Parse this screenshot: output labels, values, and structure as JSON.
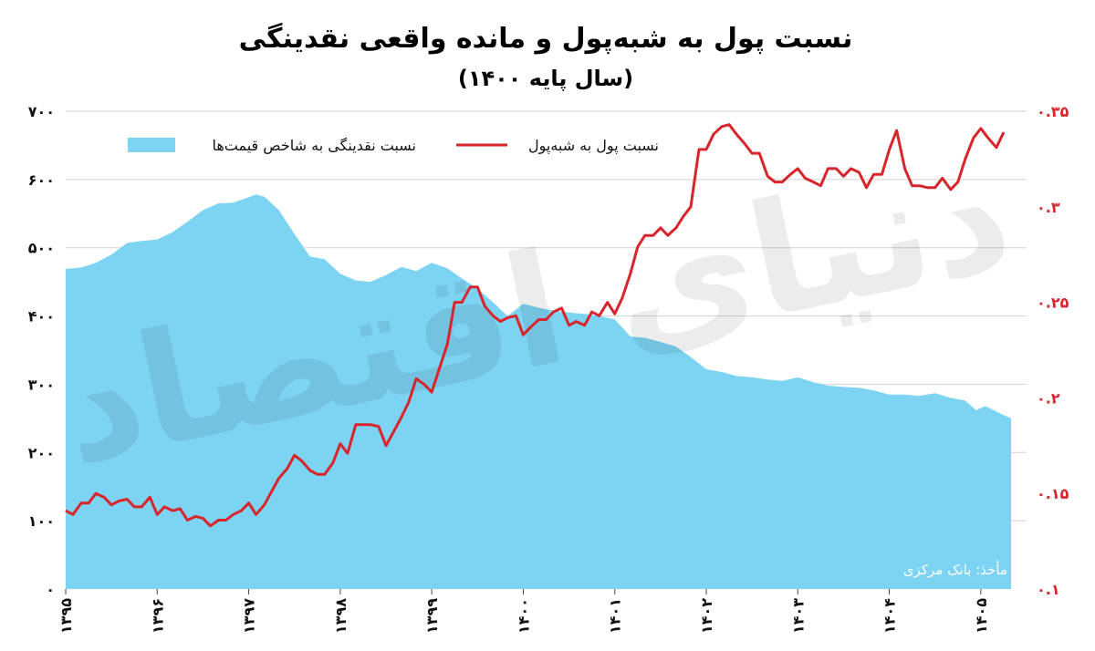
{
  "chart_data": {
    "type": "area+line",
    "title": "نسبت پول به شبه‌پول و مانده واقعی نقدینگی",
    "subtitle": "(سال پایه ۱۴۰۰)",
    "source": "مأخذ: بانک مرکزی",
    "grid": true,
    "legend_placement": "top",
    "x_ticks": [
      "۱۳۹۵",
      "۱۳۹۶",
      "۱۳۹۷",
      "۱۳۹۸",
      "۱۳۹۹",
      "۱۴۰۰",
      "۱۴۰۱",
      "۱۴۰۲",
      "۱۴۰۳",
      "۱۴۰۴",
      "۱۴۰۵"
    ],
    "x_range": [
      1395,
      1405.5
    ],
    "y_left": {
      "ticks": [
        0,
        100,
        200,
        300,
        400,
        500,
        600,
        700
      ],
      "tick_labels": [
        "۰",
        "۱۰۰",
        "۲۰۰",
        "۳۰۰",
        "۴۰۰",
        "۵۰۰",
        "۶۰۰",
        "۷۰۰"
      ],
      "range": [
        0,
        700
      ]
    },
    "y_right": {
      "ticks": [
        0.1,
        0.15,
        0.2,
        0.25,
        0.3,
        0.35
      ],
      "tick_labels": [
        "۰.۱",
        "۰.۱۵",
        "۰.۲",
        "۰.۲۵",
        "۰.۳",
        "۰.۳۵"
      ],
      "range": [
        0.1,
        0.35
      ]
    },
    "series": [
      {
        "name": "نسبت نقدینگی به شاخص قیمت‌ها",
        "kind": "area",
        "axis": "left",
        "color": "#7dd3f2",
        "points": [
          [
            1395.0,
            469
          ],
          [
            1395.17,
            471
          ],
          [
            1395.33,
            478
          ],
          [
            1395.5,
            490
          ],
          [
            1395.67,
            507
          ],
          [
            1395.83,
            510
          ],
          [
            1396.0,
            512
          ],
          [
            1396.17,
            523
          ],
          [
            1396.33,
            538
          ],
          [
            1396.5,
            555
          ],
          [
            1396.67,
            565
          ],
          [
            1396.83,
            566
          ],
          [
            1397.0,
            574
          ],
          [
            1397.08,
            578
          ],
          [
            1397.17,
            575
          ],
          [
            1397.33,
            555
          ],
          [
            1397.5,
            520
          ],
          [
            1397.67,
            487
          ],
          [
            1397.83,
            483
          ],
          [
            1398.0,
            462
          ],
          [
            1398.17,
            452
          ],
          [
            1398.33,
            450
          ],
          [
            1398.5,
            460
          ],
          [
            1398.67,
            472
          ],
          [
            1398.83,
            466
          ],
          [
            1399.0,
            478
          ],
          [
            1399.17,
            470
          ],
          [
            1399.33,
            455
          ],
          [
            1399.5,
            440
          ],
          [
            1399.67,
            420
          ],
          [
            1399.83,
            400
          ],
          [
            1400.0,
            418
          ],
          [
            1400.17,
            412
          ],
          [
            1400.33,
            408
          ],
          [
            1400.5,
            405
          ],
          [
            1400.67,
            403
          ],
          [
            1400.83,
            400
          ],
          [
            1401.0,
            395
          ],
          [
            1401.17,
            370
          ],
          [
            1401.33,
            368
          ],
          [
            1401.5,
            362
          ],
          [
            1401.67,
            355
          ],
          [
            1401.83,
            340
          ],
          [
            1402.0,
            322
          ],
          [
            1402.17,
            318
          ],
          [
            1402.33,
            312
          ],
          [
            1402.5,
            310
          ],
          [
            1402.67,
            307
          ],
          [
            1402.83,
            305
          ],
          [
            1403.0,
            310
          ],
          [
            1403.17,
            303
          ],
          [
            1403.33,
            298
          ],
          [
            1403.5,
            296
          ],
          [
            1403.67,
            295
          ],
          [
            1403.83,
            291
          ],
          [
            1404.0,
            285
          ],
          [
            1404.17,
            285
          ],
          [
            1404.33,
            283
          ],
          [
            1404.5,
            287
          ],
          [
            1404.67,
            280
          ],
          [
            1404.83,
            276
          ],
          [
            1404.95,
            262
          ],
          [
            1405.05,
            268
          ],
          [
            1405.2,
            258
          ],
          [
            1405.33,
            250
          ]
        ]
      },
      {
        "name": "نسبت پول به شبه‌پول",
        "kind": "line",
        "axis": "right",
        "color": "#d7252b",
        "points": [
          [
            1395.0,
            0.141
          ],
          [
            1395.08,
            0.139
          ],
          [
            1395.17,
            0.145
          ],
          [
            1395.25,
            0.145
          ],
          [
            1395.33,
            0.15
          ],
          [
            1395.42,
            0.148
          ],
          [
            1395.5,
            0.144
          ],
          [
            1395.58,
            0.146
          ],
          [
            1395.67,
            0.147
          ],
          [
            1395.75,
            0.143
          ],
          [
            1395.83,
            0.143
          ],
          [
            1395.92,
            0.148
          ],
          [
            1396.0,
            0.139
          ],
          [
            1396.08,
            0.143
          ],
          [
            1396.17,
            0.141
          ],
          [
            1396.25,
            0.142
          ],
          [
            1396.33,
            0.136
          ],
          [
            1396.42,
            0.138
          ],
          [
            1396.5,
            0.137
          ],
          [
            1396.58,
            0.133
          ],
          [
            1396.67,
            0.136
          ],
          [
            1396.75,
            0.136
          ],
          [
            1396.83,
            0.139
          ],
          [
            1396.92,
            0.141
          ],
          [
            1397.0,
            0.145
          ],
          [
            1397.08,
            0.139
          ],
          [
            1397.17,
            0.144
          ],
          [
            1397.25,
            0.151
          ],
          [
            1397.33,
            0.158
          ],
          [
            1397.42,
            0.163
          ],
          [
            1397.5,
            0.17
          ],
          [
            1397.58,
            0.167
          ],
          [
            1397.67,
            0.162
          ],
          [
            1397.75,
            0.16
          ],
          [
            1397.83,
            0.16
          ],
          [
            1397.92,
            0.166
          ],
          [
            1398.0,
            0.176
          ],
          [
            1398.08,
            0.171
          ],
          [
            1398.17,
            0.186
          ],
          [
            1398.25,
            0.186
          ],
          [
            1398.33,
            0.186
          ],
          [
            1398.42,
            0.185
          ],
          [
            1398.5,
            0.175
          ],
          [
            1398.58,
            0.182
          ],
          [
            1398.67,
            0.19
          ],
          [
            1398.75,
            0.198
          ],
          [
            1398.83,
            0.21
          ],
          [
            1398.92,
            0.207
          ],
          [
            1399.0,
            0.203
          ],
          [
            1399.08,
            0.215
          ],
          [
            1399.17,
            0.228
          ],
          [
            1399.25,
            0.25
          ],
          [
            1399.33,
            0.25
          ],
          [
            1399.42,
            0.258
          ],
          [
            1399.5,
            0.258
          ],
          [
            1399.58,
            0.248
          ],
          [
            1399.67,
            0.243
          ],
          [
            1399.75,
            0.24
          ],
          [
            1399.83,
            0.242
          ],
          [
            1399.92,
            0.243
          ],
          [
            1400.0,
            0.233
          ],
          [
            1400.08,
            0.237
          ],
          [
            1400.17,
            0.241
          ],
          [
            1400.25,
            0.241
          ],
          [
            1400.33,
            0.245
          ],
          [
            1400.42,
            0.247
          ],
          [
            1400.5,
            0.238
          ],
          [
            1400.58,
            0.24
          ],
          [
            1400.67,
            0.238
          ],
          [
            1400.75,
            0.245
          ],
          [
            1400.83,
            0.243
          ],
          [
            1400.92,
            0.25
          ],
          [
            1401.0,
            0.244
          ],
          [
            1401.08,
            0.252
          ],
          [
            1401.17,
            0.265
          ],
          [
            1401.25,
            0.279
          ],
          [
            1401.33,
            0.285
          ],
          [
            1401.42,
            0.285
          ],
          [
            1401.5,
            0.289
          ],
          [
            1401.58,
            0.285
          ],
          [
            1401.67,
            0.289
          ],
          [
            1401.75,
            0.295
          ],
          [
            1401.83,
            0.3
          ],
          [
            1401.92,
            0.33
          ],
          [
            1402.0,
            0.33
          ],
          [
            1402.08,
            0.338
          ],
          [
            1402.17,
            0.342
          ],
          [
            1402.25,
            0.343
          ],
          [
            1402.33,
            0.338
          ],
          [
            1402.42,
            0.333
          ],
          [
            1402.5,
            0.328
          ],
          [
            1402.58,
            0.328
          ],
          [
            1402.67,
            0.316
          ],
          [
            1402.75,
            0.313
          ],
          [
            1402.83,
            0.313
          ],
          [
            1402.92,
            0.317
          ],
          [
            1403.0,
            0.32
          ],
          [
            1403.08,
            0.315
          ],
          [
            1403.17,
            0.313
          ],
          [
            1403.25,
            0.311
          ],
          [
            1403.33,
            0.32
          ],
          [
            1403.42,
            0.32
          ],
          [
            1403.5,
            0.316
          ],
          [
            1403.58,
            0.32
          ],
          [
            1403.67,
            0.318
          ],
          [
            1403.75,
            0.31
          ],
          [
            1403.83,
            0.317
          ],
          [
            1403.92,
            0.317
          ],
          [
            1404.0,
            0.33
          ],
          [
            1404.08,
            0.34
          ],
          [
            1404.17,
            0.32
          ],
          [
            1404.25,
            0.311
          ],
          [
            1404.33,
            0.311
          ],
          [
            1404.42,
            0.31
          ],
          [
            1404.5,
            0.31
          ],
          [
            1404.58,
            0.315
          ],
          [
            1404.67,
            0.309
          ],
          [
            1404.75,
            0.313
          ],
          [
            1404.83,
            0.325
          ],
          [
            1404.92,
            0.336
          ],
          [
            1405.0,
            0.341
          ],
          [
            1405.08,
            0.336
          ],
          [
            1405.17,
            0.331
          ],
          [
            1405.25,
            0.339
          ]
        ]
      }
    ]
  }
}
